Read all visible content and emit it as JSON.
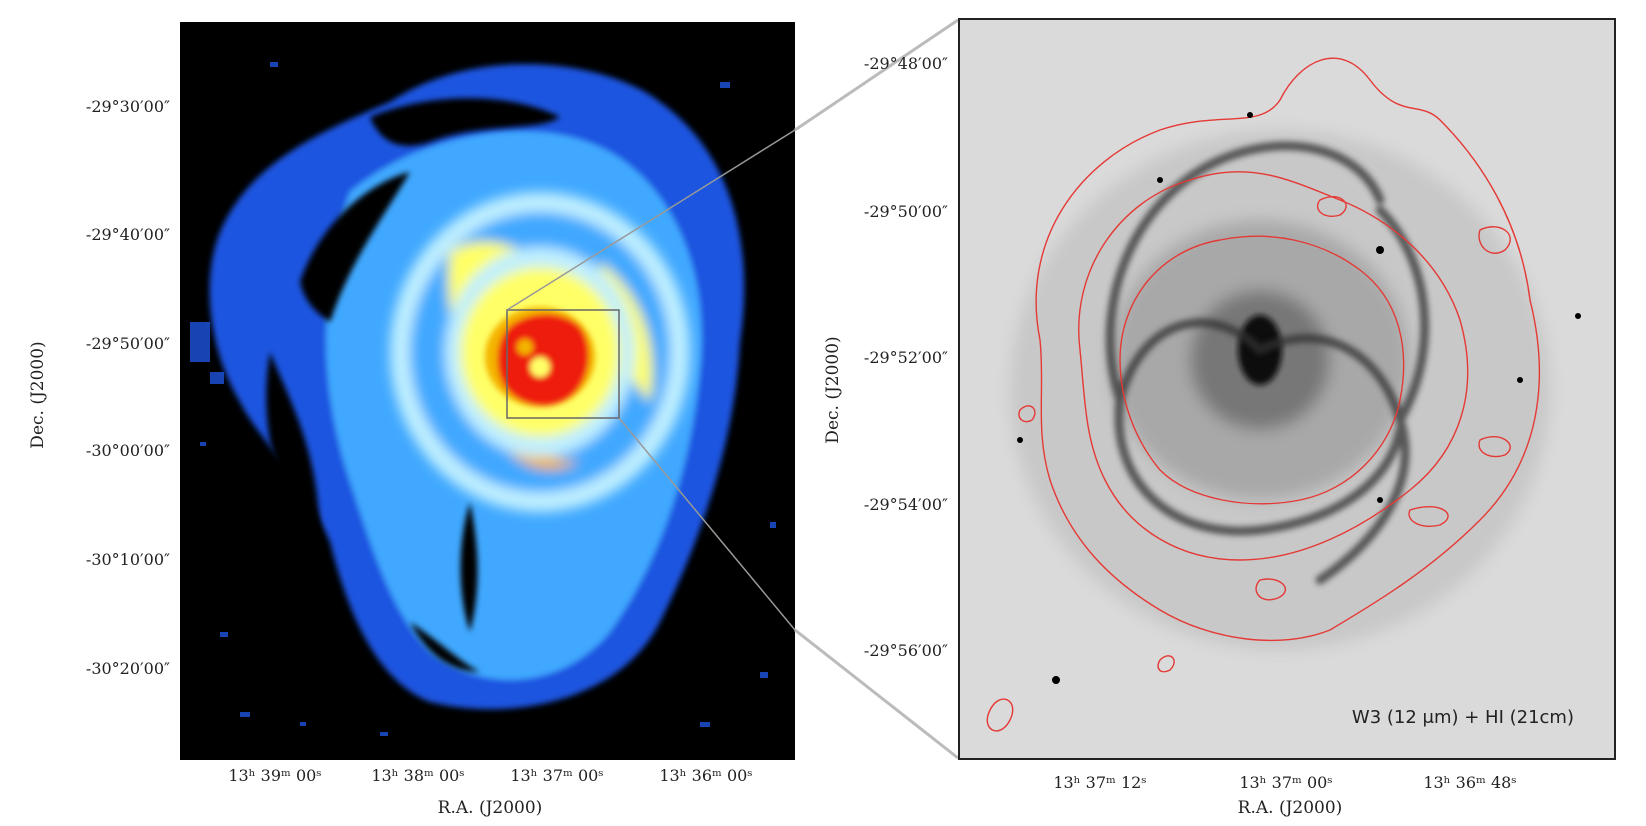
{
  "left_panel": {
    "y_ticks": [
      "-29°30′00″",
      "-29°40′00″",
      "-29°50′00″",
      "-30°00′00″",
      "-30°10′00″",
      "-30°20′00″"
    ],
    "x_ticks": [
      "13ʰ 39ᵐ 00ˢ",
      "13ʰ 38ᵐ 00ˢ",
      "13ʰ 37ᵐ 00ˢ",
      "13ʰ 36ᵐ 00ˢ"
    ],
    "y_label": "Dec. (J2000)",
    "x_label": "R.A. (J2000)"
  },
  "right_panel": {
    "y_ticks": [
      "-29°48′00″",
      "-29°50′00″",
      "-29°52′00″",
      "-29°54′00″",
      "-29°56′00″"
    ],
    "x_ticks": [
      "13ʰ 37ᵐ 12ˢ",
      "13ʰ 37ᵐ 00ˢ",
      "13ʰ 36ᵐ 48ˢ"
    ],
    "y_label": "Dec. (J2000)",
    "x_label": "R.A. (J2000)",
    "annotation": "W3 (12 μm) + HI (21cm)"
  },
  "colors": {
    "hi_colormap": [
      "#000000",
      "#1f55e0",
      "#3fa8ff",
      "#bfefff",
      "#ffff66",
      "#f4b400",
      "#ee1c10"
    ],
    "contour": "#e53935",
    "background_gray": "#d7d7d7"
  }
}
